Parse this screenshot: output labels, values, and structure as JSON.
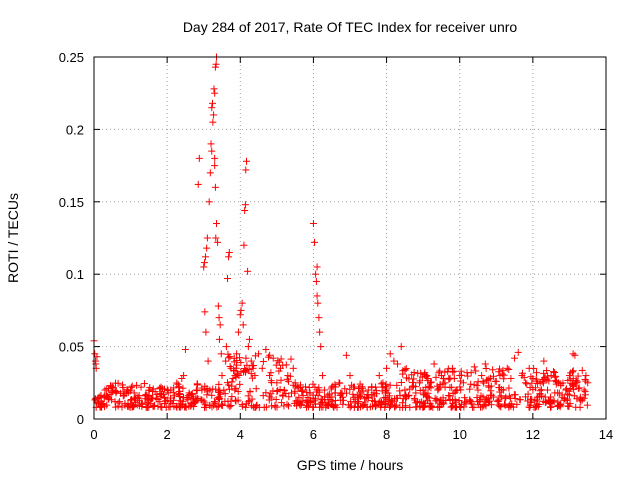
{
  "chart_data": {
    "type": "scatter",
    "title": "Day 284 of 2017, Rate Of TEC Index for receiver unro",
    "xlabel": "GPS time / hours",
    "ylabel": "ROTI / TECUs",
    "xlim": [
      0,
      14
    ],
    "ylim": [
      0,
      0.25
    ],
    "x_ticks": [
      0,
      2,
      4,
      6,
      8,
      10,
      12,
      14
    ],
    "y_ticks": [
      0,
      0.05,
      0.1,
      0.15,
      0.2,
      0.25
    ],
    "x_tick_labels": [
      "0",
      "2",
      "4",
      "6",
      "8",
      "10",
      "12",
      "14"
    ],
    "y_tick_labels": [
      "0",
      "0.05",
      "0.1",
      "0.15",
      "0.2",
      "0.25"
    ],
    "grid": true,
    "marker": "+",
    "color": "#ff0000",
    "series": [
      {
        "name": "ROTI",
        "points": [
          [
            0.0,
            0.054
          ],
          [
            0.02,
            0.045
          ],
          [
            0.04,
            0.04
          ],
          [
            0.06,
            0.035
          ],
          [
            0.05,
            0.038
          ],
          [
            0.08,
            0.043
          ],
          [
            0.1,
            0.014
          ],
          [
            0.2,
            0.012
          ],
          [
            0.3,
            0.02
          ],
          [
            0.4,
            0.015
          ],
          [
            0.5,
            0.022
          ],
          [
            0.6,
            0.018
          ],
          [
            0.7,
            0.012
          ],
          [
            0.8,
            0.016
          ],
          [
            0.9,
            0.02
          ],
          [
            1.0,
            0.013
          ],
          [
            1.1,
            0.018
          ],
          [
            1.2,
            0.015
          ],
          [
            1.3,
            0.011
          ],
          [
            1.4,
            0.016
          ],
          [
            1.5,
            0.013
          ],
          [
            1.6,
            0.019
          ],
          [
            1.7,
            0.014
          ],
          [
            1.8,
            0.012
          ],
          [
            1.9,
            0.017
          ],
          [
            2.0,
            0.013
          ],
          [
            2.1,
            0.02
          ],
          [
            2.2,
            0.016
          ],
          [
            2.3,
            0.024
          ],
          [
            2.4,
            0.028
          ],
          [
            2.45,
            0.03
          ],
          [
            2.5,
            0.048
          ],
          [
            2.6,
            0.018
          ],
          [
            2.7,
            0.014
          ],
          [
            2.8,
            0.02
          ],
          [
            2.85,
            0.162
          ],
          [
            2.88,
            0.18
          ],
          [
            2.95,
            0.02
          ],
          [
            3.0,
            0.105
          ],
          [
            3.02,
            0.108
          ],
          [
            3.05,
            0.112
          ],
          [
            3.08,
            0.118
          ],
          [
            3.1,
            0.125
          ],
          [
            3.03,
            0.074
          ],
          [
            3.06,
            0.06
          ],
          [
            3.12,
            0.04
          ],
          [
            3.15,
            0.15
          ],
          [
            3.18,
            0.17
          ],
          [
            3.2,
            0.19
          ],
          [
            3.22,
            0.185
          ],
          [
            3.25,
            0.205
          ],
          [
            3.22,
            0.215
          ],
          [
            3.24,
            0.218
          ],
          [
            3.27,
            0.21
          ],
          [
            3.28,
            0.228
          ],
          [
            3.3,
            0.225
          ],
          [
            3.32,
            0.243
          ],
          [
            3.34,
            0.245
          ],
          [
            3.35,
            0.25
          ],
          [
            3.3,
            0.18
          ],
          [
            3.3,
            0.175
          ],
          [
            3.32,
            0.16
          ],
          [
            3.35,
            0.135
          ],
          [
            3.33,
            0.125
          ],
          [
            3.38,
            0.122
          ],
          [
            3.4,
            0.078
          ],
          [
            3.42,
            0.07
          ],
          [
            3.45,
            0.065
          ],
          [
            3.43,
            0.055
          ],
          [
            3.48,
            0.045
          ],
          [
            3.5,
            0.03
          ],
          [
            3.55,
            0.02
          ],
          [
            3.6,
            0.04
          ],
          [
            3.62,
            0.05
          ],
          [
            3.65,
            0.097
          ],
          [
            3.68,
            0.112
          ],
          [
            3.7,
            0.115
          ],
          [
            3.75,
            0.035
          ],
          [
            3.8,
            0.028
          ],
          [
            3.85,
            0.02
          ],
          [
            3.9,
            0.045
          ],
          [
            3.95,
            0.06
          ],
          [
            4.0,
            0.072
          ],
          [
            4.02,
            0.075
          ],
          [
            4.05,
            0.08
          ],
          [
            4.08,
            0.065
          ],
          [
            4.1,
            0.12
          ],
          [
            4.12,
            0.144
          ],
          [
            4.14,
            0.148
          ],
          [
            4.15,
            0.172
          ],
          [
            4.17,
            0.178
          ],
          [
            4.2,
            0.102
          ],
          [
            4.22,
            0.05
          ],
          [
            4.25,
            0.055
          ],
          [
            4.3,
            0.04
          ],
          [
            4.35,
            0.035
          ],
          [
            4.4,
            0.03
          ],
          [
            4.5,
            0.045
          ],
          [
            4.6,
            0.035
          ],
          [
            4.7,
            0.048
          ],
          [
            4.8,
            0.03
          ],
          [
            4.9,
            0.042
          ],
          [
            5.0,
            0.025
          ],
          [
            5.1,
            0.035
          ],
          [
            5.2,
            0.02
          ],
          [
            5.3,
            0.03
          ],
          [
            5.4,
            0.018
          ],
          [
            5.5,
            0.025
          ],
          [
            5.6,
            0.015
          ],
          [
            5.7,
            0.02
          ],
          [
            5.8,
            0.013
          ],
          [
            5.9,
            0.018
          ],
          [
            6.0,
            0.135
          ],
          [
            6.03,
            0.122
          ],
          [
            6.06,
            0.1
          ],
          [
            6.08,
            0.095
          ],
          [
            6.1,
            0.085
          ],
          [
            6.12,
            0.08
          ],
          [
            6.1,
            0.105
          ],
          [
            6.15,
            0.07
          ],
          [
            6.17,
            0.06
          ],
          [
            6.2,
            0.05
          ],
          [
            6.25,
            0.03
          ],
          [
            6.3,
            0.02
          ],
          [
            6.4,
            0.015
          ],
          [
            6.5,
            0.022
          ],
          [
            6.6,
            0.018
          ],
          [
            6.7,
            0.025
          ],
          [
            6.8,
            0.015
          ],
          [
            6.9,
            0.044
          ],
          [
            7.0,
            0.03
          ],
          [
            7.1,
            0.015
          ],
          [
            7.2,
            0.012
          ],
          [
            7.3,
            0.018
          ],
          [
            7.4,
            0.014
          ],
          [
            7.5,
            0.02
          ],
          [
            7.6,
            0.016
          ],
          [
            7.7,
            0.022
          ],
          [
            7.8,
            0.03
          ],
          [
            7.9,
            0.025
          ],
          [
            8.0,
            0.035
          ],
          [
            8.1,
            0.045
          ],
          [
            8.2,
            0.04
          ],
          [
            8.3,
            0.038
          ],
          [
            8.4,
            0.05
          ],
          [
            8.5,
            0.02
          ],
          [
            8.6,
            0.016
          ],
          [
            8.7,
            0.022
          ],
          [
            8.8,
            0.018
          ],
          [
            8.9,
            0.025
          ],
          [
            9.0,
            0.02
          ],
          [
            9.1,
            0.03
          ],
          [
            9.2,
            0.025
          ],
          [
            9.3,
            0.038
          ],
          [
            9.4,
            0.02
          ],
          [
            9.5,
            0.03
          ],
          [
            9.6,
            0.022
          ],
          [
            9.7,
            0.028
          ],
          [
            9.8,
            0.035
          ],
          [
            9.9,
            0.02
          ],
          [
            10.0,
            0.03
          ],
          [
            10.1,
            0.025
          ],
          [
            10.2,
            0.032
          ],
          [
            10.3,
            0.024
          ],
          [
            10.4,
            0.036
          ],
          [
            10.5,
            0.02
          ],
          [
            10.6,
            0.03
          ],
          [
            10.7,
            0.038
          ],
          [
            10.8,
            0.022
          ],
          [
            10.9,
            0.034
          ],
          [
            11.0,
            0.026
          ],
          [
            11.1,
            0.03
          ],
          [
            11.2,
            0.02
          ],
          [
            11.3,
            0.035
          ],
          [
            11.4,
            0.028
          ],
          [
            11.5,
            0.042
          ],
          [
            11.6,
            0.046
          ],
          [
            11.7,
            0.03
          ],
          [
            11.8,
            0.025
          ],
          [
            11.9,
            0.035
          ],
          [
            12.0,
            0.028
          ],
          [
            12.1,
            0.032
          ],
          [
            12.2,
            0.025
          ],
          [
            12.3,
            0.04
          ],
          [
            12.4,
            0.02
          ],
          [
            12.5,
            0.03
          ],
          [
            12.6,
            0.018
          ],
          [
            12.7,
            0.025
          ],
          [
            12.8,
            0.015
          ],
          [
            12.9,
            0.02
          ],
          [
            13.0,
            0.03
          ],
          [
            13.1,
            0.045
          ],
          [
            13.15,
            0.044
          ],
          [
            13.2,
            0.025
          ],
          [
            13.3,
            0.015
          ],
          [
            13.4,
            0.02
          ],
          [
            13.45,
            0.03
          ],
          [
            13.5,
            0.025
          ]
        ]
      }
    ],
    "background_band": {
      "description": "dense cluster of near-baseline points along the whole time range",
      "x_range": [
        0,
        13.5
      ],
      "baseline_min": 0.008,
      "baseline_max": 0.025
    }
  }
}
